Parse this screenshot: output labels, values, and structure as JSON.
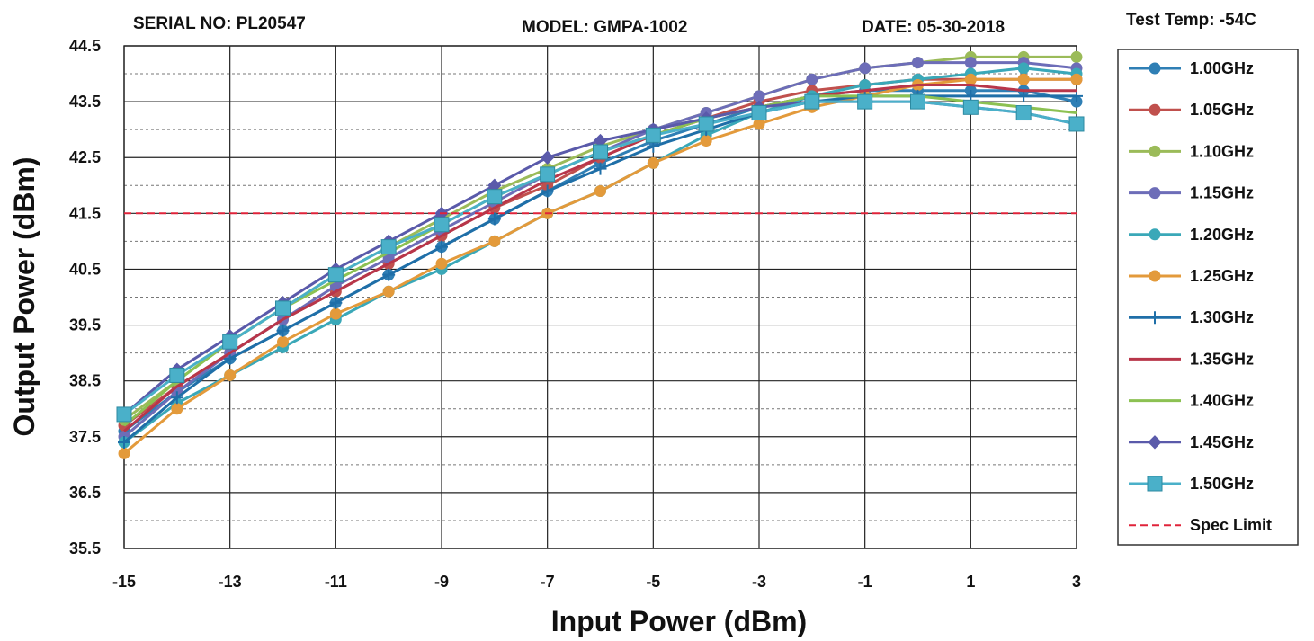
{
  "header": {
    "serial": "SERIAL NO: PL20547",
    "model": "MODEL: GMPA-1002",
    "date": "DATE: 05-30-2018",
    "temp": "Test Temp: -54C"
  },
  "chart_data": {
    "type": "line",
    "xlabel": "Input Power (dBm)",
    "ylabel": "Output Power (dBm)",
    "xlim": [
      -15,
      3
    ],
    "ylim": [
      35.5,
      44.5
    ],
    "xticks": [
      -15,
      -13,
      -11,
      -9,
      -7,
      -5,
      -3,
      -1,
      1,
      3
    ],
    "yticks": [
      35.5,
      36.5,
      37.5,
      38.5,
      39.5,
      40.5,
      41.5,
      42.5,
      43.5,
      44.5
    ],
    "grid": true,
    "legend_position": "right",
    "x": [
      -15,
      -14,
      -13,
      -12,
      -11,
      -10,
      -9,
      -8,
      -7,
      -6,
      -5,
      -4,
      -3,
      -2,
      -1,
      0,
      1,
      2,
      3
    ],
    "series": [
      {
        "name": "1.00GHz",
        "color": "#2f7fb5",
        "marker": "circle",
        "values": [
          37.6,
          38.3,
          38.9,
          39.4,
          39.9,
          40.4,
          40.9,
          41.4,
          41.9,
          42.4,
          42.8,
          43.1,
          43.4,
          43.6,
          43.7,
          43.7,
          43.7,
          43.7,
          43.5
        ]
      },
      {
        "name": "1.05GHz",
        "color": "#c0504d",
        "marker": "circle",
        "values": [
          37.7,
          38.4,
          39.0,
          39.6,
          40.1,
          40.6,
          41.1,
          41.6,
          42.0,
          42.5,
          42.9,
          43.2,
          43.5,
          43.7,
          43.8,
          43.9,
          43.9,
          43.9,
          43.9
        ]
      },
      {
        "name": "1.10GHz",
        "color": "#9bbb59",
        "marker": "circle",
        "values": [
          37.8,
          38.5,
          39.2,
          39.8,
          40.4,
          40.9,
          41.4,
          41.9,
          42.3,
          42.7,
          43.0,
          43.3,
          43.6,
          43.9,
          44.1,
          44.2,
          44.3,
          44.3,
          44.3
        ]
      },
      {
        "name": "1.15GHz",
        "color": "#6d6db8",
        "marker": "circle",
        "values": [
          37.5,
          38.3,
          39.0,
          39.6,
          40.2,
          40.7,
          41.2,
          41.7,
          42.2,
          42.6,
          43.0,
          43.3,
          43.6,
          43.9,
          44.1,
          44.2,
          44.2,
          44.2,
          44.1
        ]
      },
      {
        "name": "1.20GHz",
        "color": "#3aa8b8",
        "marker": "circle",
        "values": [
          37.4,
          38.1,
          38.6,
          39.1,
          39.6,
          40.1,
          40.5,
          41.0,
          41.5,
          41.9,
          42.4,
          42.9,
          43.3,
          43.6,
          43.8,
          43.9,
          44.0,
          44.1,
          44.0
        ]
      },
      {
        "name": "1.25GHz",
        "color": "#e39a3b",
        "marker": "circle",
        "values": [
          37.2,
          38.0,
          38.6,
          39.2,
          39.7,
          40.1,
          40.6,
          41.0,
          41.5,
          41.9,
          42.4,
          42.8,
          43.1,
          43.4,
          43.6,
          43.8,
          43.9,
          43.9,
          43.9
        ]
      },
      {
        "name": "1.30GHz",
        "color": "#1f6fa8",
        "marker": "plus",
        "values": [
          37.4,
          38.2,
          38.9,
          39.4,
          39.9,
          40.4,
          40.9,
          41.4,
          41.9,
          42.3,
          42.7,
          43.0,
          43.3,
          43.5,
          43.6,
          43.6,
          43.6,
          43.6,
          43.6
        ]
      },
      {
        "name": "1.35GHz",
        "color": "#b8364a",
        "marker": "none",
        "values": [
          37.6,
          38.4,
          39.0,
          39.6,
          40.1,
          40.6,
          41.1,
          41.6,
          42.1,
          42.5,
          42.9,
          43.2,
          43.4,
          43.6,
          43.7,
          43.8,
          43.8,
          43.7,
          43.7
        ]
      },
      {
        "name": "1.40GHz",
        "color": "#8cc152",
        "marker": "none",
        "values": [
          37.7,
          38.5,
          39.2,
          39.8,
          40.3,
          40.8,
          41.3,
          41.8,
          42.2,
          42.6,
          42.9,
          43.2,
          43.4,
          43.6,
          43.6,
          43.6,
          43.5,
          43.4,
          43.3
        ]
      },
      {
        "name": "1.45GHz",
        "color": "#5a5aaa",
        "marker": "diamond",
        "values": [
          37.9,
          38.7,
          39.3,
          39.9,
          40.5,
          41.0,
          41.5,
          42.0,
          42.5,
          42.8,
          43.0,
          43.2,
          43.4,
          43.5,
          43.5,
          43.5,
          43.4,
          43.3,
          43.1
        ]
      },
      {
        "name": "1.50GHz",
        "color": "#4ab0c9",
        "marker": "square",
        "values": [
          37.9,
          38.6,
          39.2,
          39.8,
          40.4,
          40.9,
          41.3,
          41.8,
          42.2,
          42.6,
          42.9,
          43.1,
          43.3,
          43.5,
          43.5,
          43.5,
          43.4,
          43.3,
          43.1
        ]
      },
      {
        "name": "Spec Limit",
        "color": "#e0233a",
        "marker": "none",
        "dashed": true,
        "values": [
          41.5,
          41.5,
          41.5,
          41.5,
          41.5,
          41.5,
          41.5,
          41.5,
          41.5,
          41.5,
          41.5,
          41.5,
          41.5,
          41.5,
          41.5,
          41.5,
          41.5,
          41.5,
          41.5
        ]
      }
    ]
  }
}
